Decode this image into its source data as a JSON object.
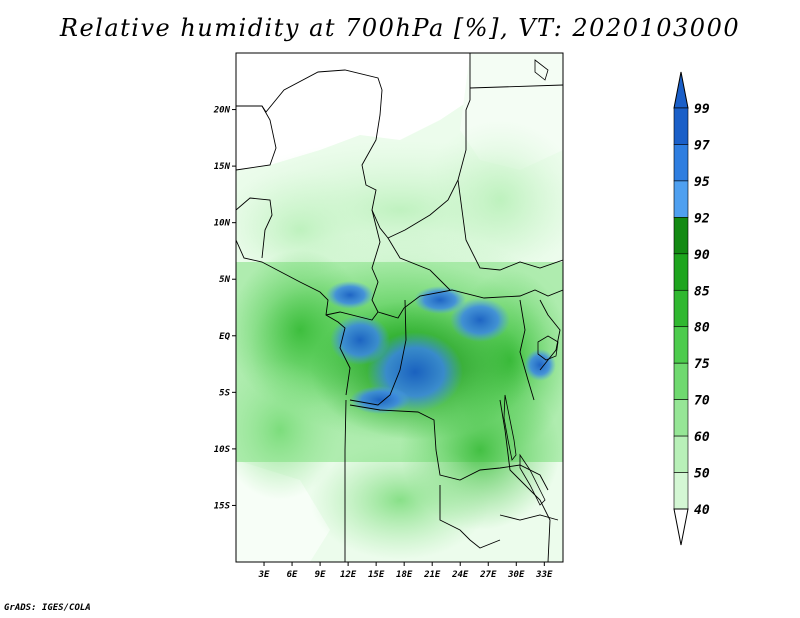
{
  "title": "Relative humidity at 700hPa [%], VT: 2020103000",
  "footer": "GrADS: IGES/COLA",
  "map": {
    "lon_range": [
      0,
      35
    ],
    "lat_range": [
      -20,
      25
    ],
    "lat_ticks": [
      {
        "value": 20,
        "label": "20N"
      },
      {
        "value": 15,
        "label": "15N"
      },
      {
        "value": 10,
        "label": "10N"
      },
      {
        "value": 5,
        "label": "5N"
      },
      {
        "value": 0,
        "label": "EQ"
      },
      {
        "value": -5,
        "label": "5S"
      },
      {
        "value": -10,
        "label": "10S"
      },
      {
        "value": -15,
        "label": "15S"
      }
    ],
    "lon_ticks": [
      {
        "value": 3,
        "label": "3E"
      },
      {
        "value": 6,
        "label": "6E"
      },
      {
        "value": 9,
        "label": "9E"
      },
      {
        "value": 12,
        "label": "12E"
      },
      {
        "value": 15,
        "label": "15E"
      },
      {
        "value": 18,
        "label": "18E"
      },
      {
        "value": 21,
        "label": "21E"
      },
      {
        "value": 24,
        "label": "24E"
      },
      {
        "value": 27,
        "label": "27E"
      },
      {
        "value": 30,
        "label": "30E"
      },
      {
        "value": 33,
        "label": "33E"
      }
    ]
  },
  "colorbar": {
    "levels": [
      "99",
      "97",
      "95",
      "92",
      "90",
      "85",
      "80",
      "75",
      "70",
      "60",
      "50",
      "40"
    ],
    "colors": [
      "#1a5fc8",
      "#2f7ee0",
      "#4fa0f0",
      "#138a13",
      "#1ea51e",
      "#30b830",
      "#4dcc4d",
      "#6fd96f",
      "#96e696",
      "#b8f0b8",
      "#d4f7d4",
      "#ecfcec"
    ],
    "top_color": "#1a5fc8",
    "bottom_color": "#ffffff"
  }
}
